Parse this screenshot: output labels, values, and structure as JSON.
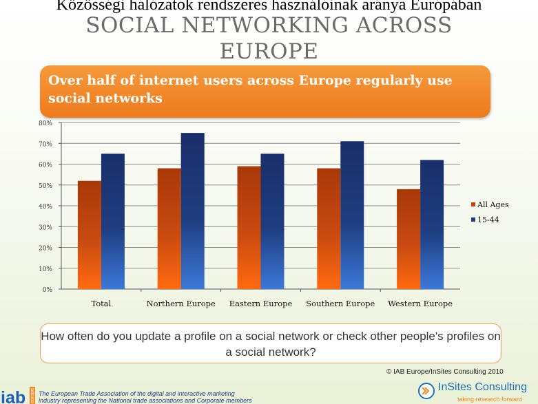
{
  "top_caption": "Közösségi hálózatok rendszeres használóinak aránya Európában",
  "slide_title": {
    "line1": "SOCIAL NETWORKING ACROSS",
    "line2": "EUROPE"
  },
  "headline": "Over half of internet users across Europe regularly use social networks",
  "question": "How often do you update a profile on a social network or check other people's profiles on a social network?",
  "copyright": "© IAB Europe/InSites Consulting 2010",
  "footer": {
    "iab_letters": "iab",
    "iab_side": "europe",
    "line1": "The European Trade Association of the digital and interactive marketing",
    "line2": "industry representing the National trade associations and Corporate members"
  },
  "insites": {
    "name": "InSites Consulting",
    "tagline": "taking research forward"
  },
  "colors": {
    "all_ages": "#c8420a",
    "age_15_44": "#1f3d7a",
    "headline_orange": "#f08a24"
  },
  "chart_data": {
    "type": "bar",
    "categories": [
      "Total",
      "Northern Europe",
      "Eastern Europe",
      "Southern Europe",
      "Western Europe"
    ],
    "series": [
      {
        "name": "All Ages",
        "values": [
          52,
          58,
          59,
          58,
          48
        ]
      },
      {
        "name": "15-44",
        "values": [
          65,
          75,
          65,
          71,
          62
        ]
      }
    ],
    "y_ticks": [
      "0%",
      "10%",
      "20%",
      "30%",
      "40%",
      "50%",
      "60%",
      "70%",
      "80%"
    ],
    "ylim": [
      0,
      80
    ],
    "grid": true,
    "legend_position": "right",
    "title": "",
    "xlabel": "",
    "ylabel": ""
  }
}
